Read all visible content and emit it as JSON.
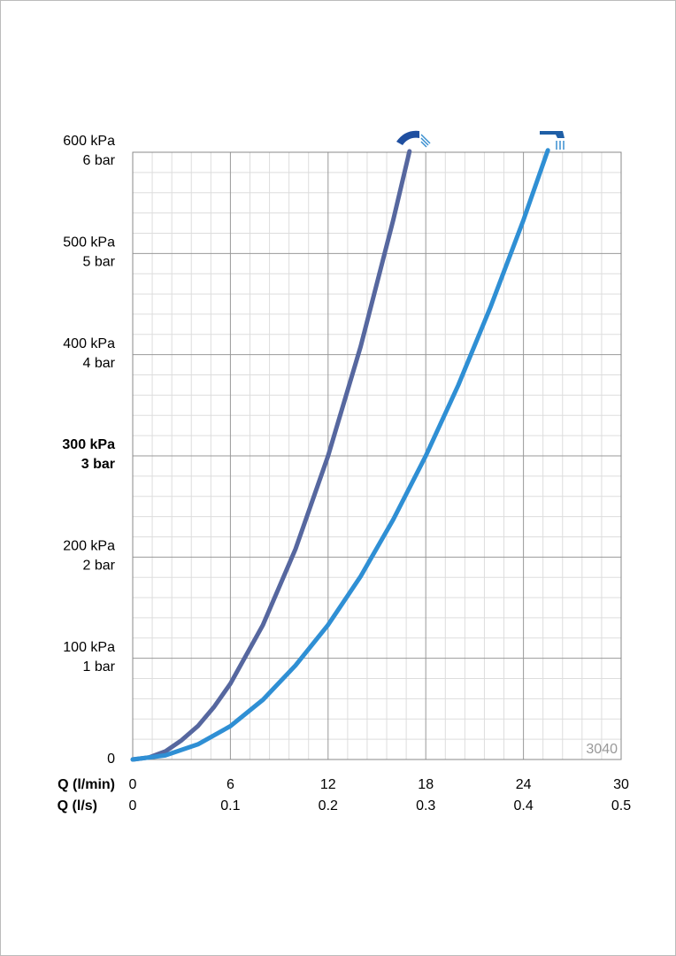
{
  "chart_data": {
    "type": "line",
    "xlabel": "Q (l/min)",
    "x2label": "Q (l/s)",
    "xlim": [
      0,
      30
    ],
    "xticks": [
      0,
      6,
      12,
      18,
      24,
      30
    ],
    "x2lim": [
      0,
      0.5
    ],
    "x2ticks": [
      0,
      0.1,
      0.2,
      0.3,
      0.4,
      0.5
    ],
    "ylim": [
      0,
      600
    ],
    "yticks": [
      0,
      {
        "value": 100,
        "label": "100 kPa"
      },
      {
        "value": 200,
        "label": "200 kPa"
      },
      {
        "value": 300,
        "label": "300 kPa"
      },
      {
        "value": 400,
        "label": "400 kPa"
      },
      {
        "value": 500,
        "label": "500 kPa"
      },
      {
        "value": 600,
        "label": "600 kPa"
      }
    ],
    "y2lim": [
      0,
      6
    ],
    "y2ticks": [
      {
        "value": 1,
        "label": "1 bar"
      },
      {
        "value": 2,
        "label": "2 bar"
      },
      {
        "value": 3,
        "label": "3 bar"
      },
      {
        "value": 4,
        "label": "4 bar"
      },
      {
        "value": 5,
        "label": "5 bar"
      },
      {
        "value": 6,
        "label": "6 bar"
      }
    ],
    "bold_ytick": 300,
    "grid": true,
    "minor_divisions": 5,
    "annotation": "3040",
    "series": [
      {
        "color": "#56679f",
        "x": [
          0,
          1,
          2,
          3,
          4,
          5,
          6,
          8,
          10,
          12,
          14,
          16,
          17
        ],
        "values": [
          0,
          2,
          8,
          19,
          33,
          52,
          75,
          133,
          208,
          300,
          408,
          533,
          601
        ]
      },
      {
        "color": "#2f8fd4",
        "x": [
          0,
          2,
          4,
          6,
          8,
          10,
          12,
          14,
          16,
          18,
          20,
          22,
          24,
          25.5
        ],
        "values": [
          0,
          4,
          15,
          33,
          59,
          93,
          133,
          181,
          237,
          300,
          370,
          448,
          533,
          602
        ]
      }
    ]
  }
}
